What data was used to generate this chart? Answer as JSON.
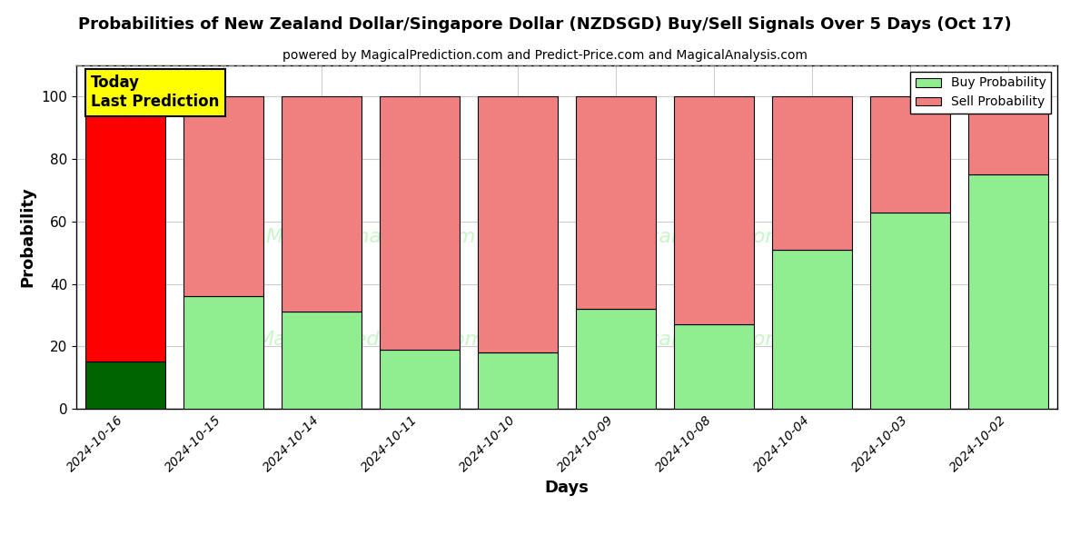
{
  "title": "Probabilities of New Zealand Dollar/Singapore Dollar (NZDSGD) Buy/Sell Signals Over 5 Days (Oct 17)",
  "subtitle": "powered by MagicalPrediction.com and Predict-Price.com and MagicalAnalysis.com",
  "xlabel": "Days",
  "ylabel": "Probability",
  "categories": [
    "2024-10-16",
    "2024-10-15",
    "2024-10-14",
    "2024-10-11",
    "2024-10-10",
    "2024-10-09",
    "2024-10-08",
    "2024-10-04",
    "2024-10-03",
    "2024-10-02"
  ],
  "buy_values": [
    15,
    36,
    31,
    19,
    18,
    32,
    27,
    51,
    63,
    75
  ],
  "sell_values": [
    85,
    64,
    69,
    81,
    82,
    68,
    73,
    49,
    37,
    25
  ],
  "today_buy_color": "#006400",
  "today_sell_color": "#FF0000",
  "buy_color": "#90EE90",
  "sell_color": "#F08080",
  "today_label_bg": "#FFFF00",
  "today_label_text": "Today\nLast Prediction",
  "legend_buy": "Buy Probability",
  "legend_sell": "Sell Probability",
  "ylim": [
    0,
    110
  ],
  "yticks": [
    0,
    20,
    40,
    60,
    80,
    100
  ],
  "dashed_line_y": 110,
  "background_color": "#ffffff",
  "grid_color": "#cccccc"
}
